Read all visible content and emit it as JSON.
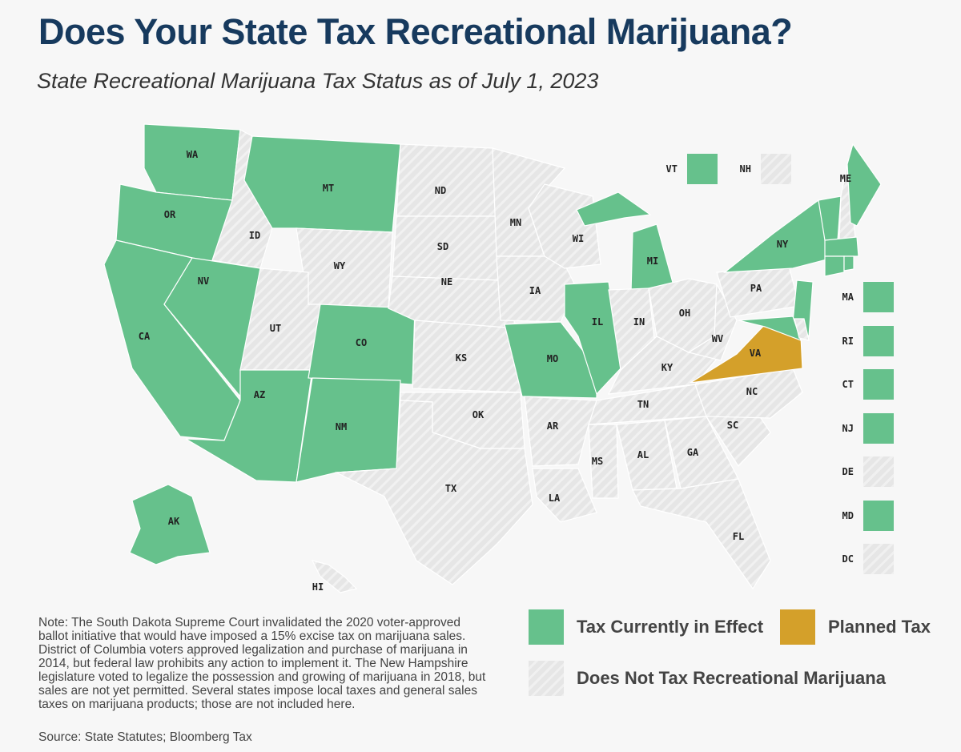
{
  "title": "Does Your State Tax Recreational Marijuana?",
  "subtitle": "State Recreational Marijuana Tax Status as of July 1, 2023",
  "colors": {
    "tax": "#66c18c",
    "planned": "#d4a02a",
    "none": "#e4e4e4",
    "title": "#173a5e"
  },
  "legend": {
    "tax": "Tax Currently in Effect",
    "planned": "Planned Tax",
    "none": "Does Not Tax Recreational Marijuana"
  },
  "states": {
    "WA": "tax",
    "OR": "tax",
    "CA": "tax",
    "NV": "tax",
    "ID": "none",
    "MT": "tax",
    "WY": "none",
    "UT": "none",
    "AZ": "tax",
    "CO": "tax",
    "NM": "tax",
    "ND": "none",
    "SD": "none",
    "NE": "none",
    "KS": "none",
    "OK": "none",
    "TX": "none",
    "MN": "none",
    "IA": "none",
    "MO": "tax",
    "AR": "none",
    "LA": "none",
    "WI": "none",
    "IL": "tax",
    "MI": "tax",
    "IN": "none",
    "OH": "none",
    "KY": "none",
    "TN": "none",
    "MS": "none",
    "AL": "none",
    "GA": "none",
    "FL": "none",
    "SC": "none",
    "NC": "none",
    "VA": "planned",
    "WV": "none",
    "PA": "none",
    "NY": "tax",
    "NJ": "tax",
    "VT": "tax",
    "NH": "none",
    "ME": "tax",
    "MA": "tax",
    "CT": "tax",
    "RI": "tax",
    "MD": "tax",
    "DE": "none",
    "DC": "none",
    "AK": "tax",
    "HI": "none"
  },
  "callouts_top": [
    {
      "code": "VT",
      "status": "tax"
    },
    {
      "code": "NH",
      "status": "none"
    }
  ],
  "callouts_side": [
    {
      "code": "MA",
      "status": "tax"
    },
    {
      "code": "RI",
      "status": "tax"
    },
    {
      "code": "CT",
      "status": "tax"
    },
    {
      "code": "NJ",
      "status": "tax"
    },
    {
      "code": "DE",
      "status": "none"
    },
    {
      "code": "MD",
      "status": "tax"
    },
    {
      "code": "DC",
      "status": "none"
    }
  ],
  "note": "Note: The South Dakota Supreme Court invalidated the 2020 voter-approved ballot initiative that would have imposed a 15% excise tax on marijuana sales. District of Columbia voters approved legalization and purchase of marijuana in 2014, but federal law prohibits any action to implement it. The New Hampshire legislature voted to legalize the possession and growing of marijuana in 2018, but sales are not yet permitted. Several states impose local taxes and general sales taxes on marijuana products; those are not included here.",
  "source": "Source: State Statutes; Bloomberg Tax"
}
